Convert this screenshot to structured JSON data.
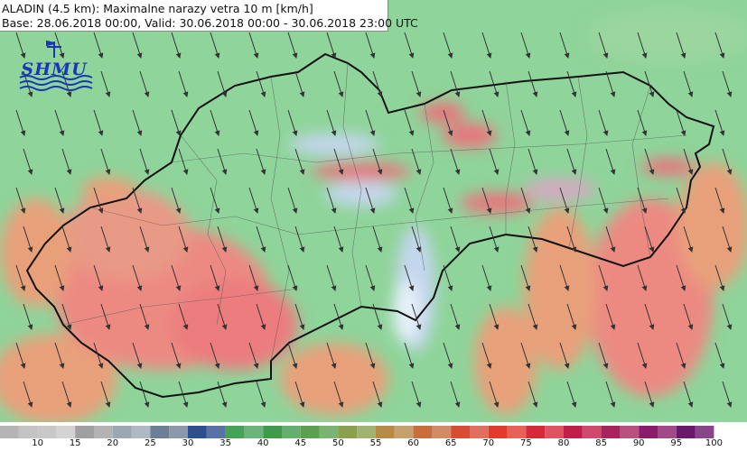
{
  "header": {
    "title_line": "ALADIN (4.5 km): Maximalne narazy vetra 10 m [km/h]",
    "base_line": "Base: 28.06.2018 00:00, Valid: 30.06.2018 00:00 - 30.06.2018 23:00 UTC"
  },
  "logo": {
    "text": "SHMU",
    "icon": "weather-vane-waves-logo"
  },
  "map": {
    "subject": "Slovakia",
    "base_color": "#8fd49a",
    "wind_arrow_icon": "arrow-icon",
    "wind_direction": "north-northwest to south-southeast"
  },
  "legend": {
    "unit": "km/h",
    "labels": [
      "10",
      "15",
      "20",
      "25",
      "30",
      "35",
      "40",
      "45",
      "50",
      "55",
      "60",
      "65",
      "70",
      "75",
      "80",
      "85",
      "90",
      "95",
      "100"
    ],
    "colors": [
      "#b4b4b4",
      "#c8c8c8",
      "#a0a0a0",
      "#9aa8b4",
      "#6e7e94",
      "#2f4e8e",
      "#45a358",
      "#3f9a4a",
      "#5aa04e",
      "#8aa04e",
      "#b88a48",
      "#c86e3c",
      "#d84c34",
      "#e23a2c",
      "#d42a3a",
      "#c21e4a",
      "#a8245e",
      "#8a1c6c",
      "#6a186c"
    ]
  }
}
